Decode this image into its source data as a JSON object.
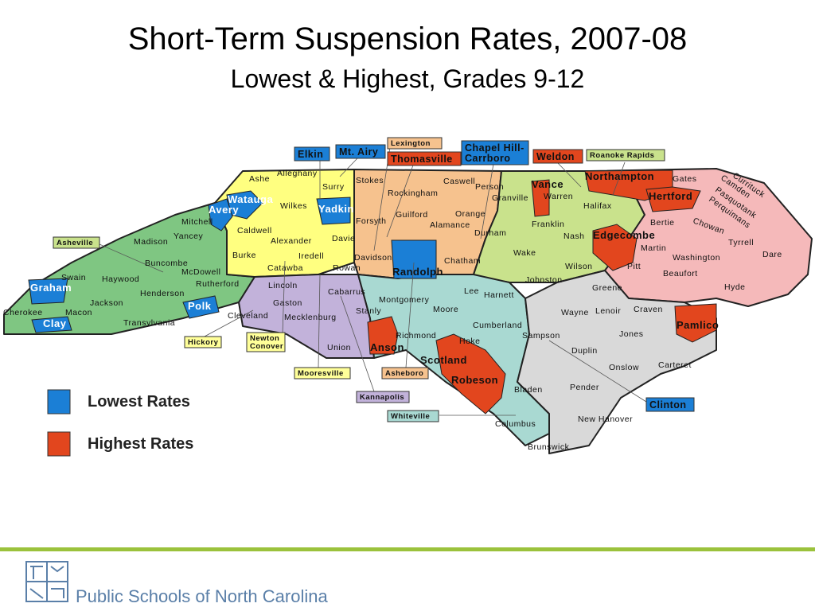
{
  "header": {
    "title": "Short-Term Suspension Rates, 2007-08",
    "subtitle": "Lowest & Highest, Grades 9-12"
  },
  "map": {
    "counties": [
      "Ashe",
      "Alleghany",
      "Surry",
      "Stokes",
      "Rockingham",
      "Caswell",
      "Person",
      "Granville",
      "Vance",
      "Warren",
      "Northampton",
      "Gates",
      "Currituck",
      "Camden",
      "Pasquotank",
      "Perquimans",
      "Chowan",
      "Hertford",
      "Bertie",
      "Halifax",
      "Franklin",
      "Nash",
      "Edgecombe",
      "Martin",
      "Washington",
      "Tyrrell",
      "Dare",
      "Beaufort",
      "Hyde",
      "Pitt",
      "Wilson",
      "Johnston",
      "Wake",
      "Durham",
      "Orange",
      "Alamance",
      "Guilford",
      "Forsyth",
      "Davie",
      "Davidson",
      "Randolph",
      "Chatham",
      "Yadkin",
      "Wilkes",
      "Watauga",
      "Avery",
      "Mitchell",
      "Yancey",
      "Madison",
      "Buncombe",
      "McDowell",
      "Caldwell",
      "Alexander",
      "Iredell",
      "Burke",
      "Catawba",
      "Rowan",
      "Swain",
      "Haywood",
      "Henderson",
      "Rutherford",
      "Polk",
      "Graham",
      "Cherokee",
      "Macon",
      "Jackson",
      "Transylvania",
      "Clay",
      "Cleveland",
      "Lincoln",
      "Gaston",
      "Mecklenburg",
      "Cabarrus",
      "Stanly",
      "Union",
      "Anson",
      "Montgomery",
      "Moore",
      "Lee",
      "Harnett",
      "Richmond",
      "Scotland",
      "Hoke",
      "Cumberland",
      "Robeson",
      "Bladen",
      "Columbus",
      "Brunswick",
      "Sampson",
      "Duplin",
      "Wayne",
      "Lenoir",
      "Greene",
      "Craven",
      "Jones",
      "Onslow",
      "Carteret",
      "Pamlico",
      "Pender",
      "New Hanover"
    ],
    "districts": [
      {
        "lines": [
          "Elkin"
        ]
      },
      {
        "lines": [
          "Mt. Airy"
        ]
      },
      {
        "lines": [
          "Lexington"
        ]
      },
      {
        "lines": [
          "Thomasville"
        ]
      },
      {
        "lines": [
          "Chapel Hill-",
          "Carrboro"
        ]
      },
      {
        "lines": [
          "Weldon"
        ]
      },
      {
        "lines": [
          "Roanoke Rapids"
        ]
      },
      {
        "lines": [
          "Asheville"
        ]
      },
      {
        "lines": [
          "Hickory"
        ]
      },
      {
        "lines": [
          "Newton",
          "Conover"
        ]
      },
      {
        "lines": [
          "Mooresville"
        ]
      },
      {
        "lines": [
          "Asheboro"
        ]
      },
      {
        "lines": [
          "Kannapolis"
        ]
      },
      {
        "lines": [
          "Whiteville"
        ]
      },
      {
        "lines": [
          "Clinton"
        ]
      }
    ]
  },
  "legend": [
    {
      "label": "Lowest Rates",
      "color": "#1b7fd6"
    },
    {
      "label": "Highest Rates",
      "color": "#e2461e"
    }
  ],
  "footer": {
    "organization": "Public Schools of North Carolina"
  }
}
